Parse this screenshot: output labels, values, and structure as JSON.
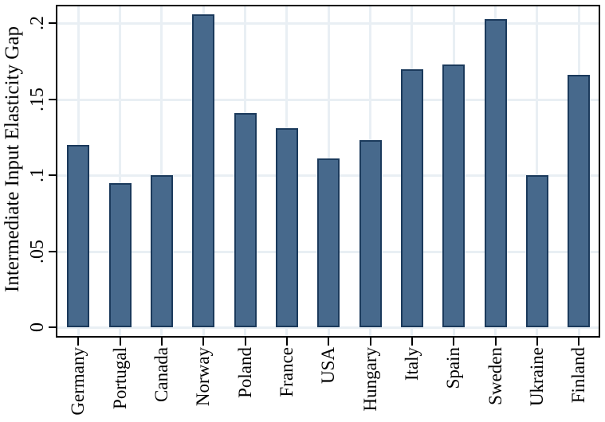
{
  "chart_data": {
    "type": "bar",
    "title": "",
    "xlabel": "",
    "ylabel": "Intermediate Input Elasticity Gap",
    "categories": [
      "Germany",
      "Portugal",
      "Canada",
      "Norway",
      "Poland",
      "France",
      "USA",
      "Hungary",
      "Italy",
      "Spain",
      "Sweden",
      "Ukraine",
      "Finland"
    ],
    "values": [
      0.12,
      0.095,
      0.1,
      0.206,
      0.141,
      0.131,
      0.111,
      0.123,
      0.17,
      0.173,
      0.203,
      0.1,
      0.166
    ],
    "y_ticks": [
      0,
      0.05,
      0.1,
      0.15,
      0.2
    ],
    "y_tick_labels": [
      "0",
      ".05",
      ".1",
      ".15",
      ".2"
    ],
    "ylim": [
      0,
      0.212
    ],
    "grid": "pale horizontal gridlines at y ticks and pale vertical gridlines at each category center",
    "legend": "none",
    "bar_color": "#47698C",
    "bar_border_color": "#1B3A5C",
    "grid_color": "#E9EFF4",
    "frame_color": "#000000",
    "background_color": "#FFFFFF"
  }
}
